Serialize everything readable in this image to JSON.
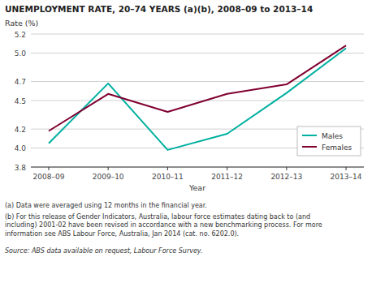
{
  "chart_data": {
    "type": "line",
    "title": "UNEMPLOYMENT RATE, 20–74 YEARS (a)(b), 2008–09 to 2013–14",
    "ylabel": "Rate (%)",
    "xlabel": "Year",
    "categories": [
      "2008–09",
      "2009–10",
      "2010–11",
      "2011–12",
      "2012–13",
      "2013–14"
    ],
    "series": [
      {
        "name": "Males",
        "color": "#00B0A0",
        "values": [
          4.05,
          4.68,
          3.98,
          4.15,
          4.58,
          5.05
        ]
      },
      {
        "name": "Females",
        "color": "#800030",
        "values": [
          4.18,
          4.57,
          4.38,
          4.57,
          4.67,
          5.08
        ]
      }
    ],
    "ylim": [
      3.8,
      5.2
    ],
    "yticks": [
      3.8,
      {
        "value": 4.0,
        "label": "4.0"
      },
      4.2,
      4.5,
      4.7,
      {
        "value": 5.0,
        "label": "5.0"
      },
      5.2
    ],
    "grid": true,
    "legend": "lower right",
    "notes": [
      "(a) Data were averaged using 12 months in the financial year.",
      "(b) For this release of Gender Indicators, Australia, labour force estimates dating back to (and\nincluding) 2001-02 have been revised in accordance with a new benchmarking process. For more\ninformation see ABS Labour Force, Australia, Jan 2014 (cat. no. 6202.0)."
    ],
    "source": "Source: ABS data available on request, Labour Force Survey."
  }
}
